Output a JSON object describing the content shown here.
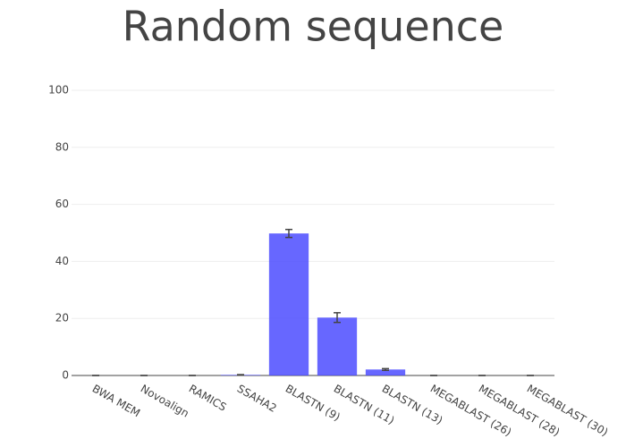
{
  "chart_data": {
    "type": "bar",
    "title": "Random sequence",
    "categories": [
      "BWA MEM",
      "Novoalign",
      "RAMICS",
      "SSAHA2",
      "BLASTN (9)",
      "BLASTN (11)",
      "BLASTN (13)",
      "MEGABLAST (26)",
      "MEGABLAST (28)",
      "MEGABLAST (30)"
    ],
    "values": [
      0,
      0,
      0,
      0.2,
      49.8,
      20.3,
      2.1,
      0,
      0,
      0
    ],
    "errors": [
      0,
      0,
      0,
      0.1,
      1.4,
      1.7,
      0.3,
      0,
      0,
      0
    ],
    "color": "#4c4cff",
    "ylim": [
      0,
      100
    ],
    "yticks": [
      0,
      20,
      40,
      60,
      80,
      100
    ],
    "grid": true
  }
}
